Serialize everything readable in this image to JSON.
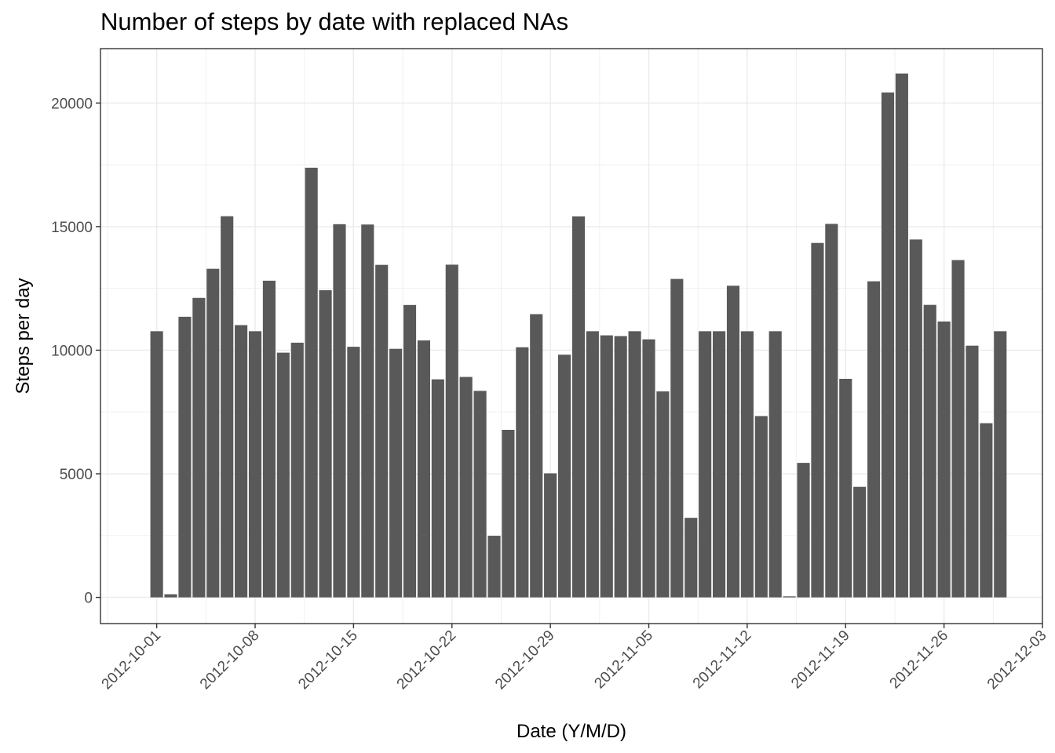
{
  "chart_data": {
    "type": "bar",
    "title": "Number of steps by date with replaced NAs",
    "xlabel": "Date (Y/M/D)",
    "ylabel": "Steps per day",
    "bar_color": "#595959",
    "grid": true,
    "ylim": [
      -1060,
      22200
    ],
    "yticks": [
      0,
      5000,
      10000,
      15000,
      20000
    ],
    "x_start": "2012-10-01",
    "x_range": [
      "2012-09-27",
      "2012-12-03"
    ],
    "xticks": [
      "2012-10-01",
      "2012-10-08",
      "2012-10-15",
      "2012-10-22",
      "2012-10-29",
      "2012-11-05",
      "2012-11-12",
      "2012-11-19",
      "2012-11-26",
      "2012-12-03"
    ],
    "dates": [
      "2012-10-01",
      "2012-10-02",
      "2012-10-03",
      "2012-10-04",
      "2012-10-05",
      "2012-10-06",
      "2012-10-07",
      "2012-10-08",
      "2012-10-09",
      "2012-10-10",
      "2012-10-11",
      "2012-10-12",
      "2012-10-13",
      "2012-10-14",
      "2012-10-15",
      "2012-10-16",
      "2012-10-17",
      "2012-10-18",
      "2012-10-19",
      "2012-10-20",
      "2012-10-21",
      "2012-10-22",
      "2012-10-23",
      "2012-10-24",
      "2012-10-25",
      "2012-10-26",
      "2012-10-27",
      "2012-10-28",
      "2012-10-29",
      "2012-10-30",
      "2012-10-31",
      "2012-11-01",
      "2012-11-02",
      "2012-11-03",
      "2012-11-04",
      "2012-11-05",
      "2012-11-06",
      "2012-11-07",
      "2012-11-08",
      "2012-11-09",
      "2012-11-10",
      "2012-11-11",
      "2012-11-12",
      "2012-11-13",
      "2012-11-14",
      "2012-11-15",
      "2012-11-16",
      "2012-11-17",
      "2012-11-18",
      "2012-11-19",
      "2012-11-20",
      "2012-11-21",
      "2012-11-22",
      "2012-11-23",
      "2012-11-24",
      "2012-11-25",
      "2012-11-26",
      "2012-11-27",
      "2012-11-28",
      "2012-11-29",
      "2012-11-30"
    ],
    "values": [
      10766,
      126,
      11352,
      12116,
      13294,
      15420,
      11015,
      10766,
      12811,
      9900,
      10304,
      17382,
      12426,
      15098,
      10139,
      15084,
      13452,
      10056,
      11829,
      10395,
      8821,
      13460,
      8918,
      8355,
      2492,
      6778,
      10119,
      11458,
      5018,
      9819,
      15414,
      10766,
      10600,
      10571,
      10766,
      10439,
      8334,
      12883,
      3219,
      10766,
      10766,
      12608,
      10765,
      7336,
      10766,
      41,
      5441,
      14339,
      15110,
      8841,
      4472,
      12787,
      20427,
      21194,
      14478,
      11834,
      11162,
      13646,
      10183,
      7047,
      10766
    ]
  }
}
